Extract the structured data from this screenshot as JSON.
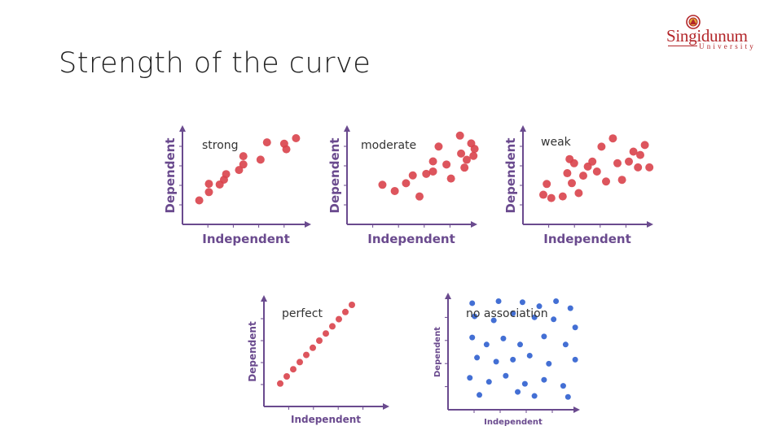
{
  "slide": {
    "title": "Strength of the curve"
  },
  "logo": {
    "name": "Singidunum",
    "subtitle": "University",
    "emblem_icon": "crest-icon",
    "color": "#b3262a"
  },
  "colors": {
    "red_points": "#d9434b",
    "blue_points": "#2f5fcf",
    "axis": "#6a4a8e"
  },
  "plots": [
    {
      "id": "strong",
      "label": "strong",
      "xlabel": "Independent",
      "ylabel": "Dependent",
      "point_color": "red",
      "points": [
        [
          0.05,
          0.1
        ],
        [
          0.14,
          0.22
        ],
        [
          0.14,
          0.34
        ],
        [
          0.24,
          0.33
        ],
        [
          0.28,
          0.4
        ],
        [
          0.3,
          0.48
        ],
        [
          0.42,
          0.54
        ],
        [
          0.46,
          0.62
        ],
        [
          0.46,
          0.74
        ],
        [
          0.62,
          0.69
        ],
        [
          0.68,
          0.94
        ],
        [
          0.84,
          0.92
        ],
        [
          0.86,
          0.84
        ],
        [
          0.95,
          1.0
        ]
      ]
    },
    {
      "id": "moderate",
      "label": "moderate",
      "xlabel": "Independent",
      "ylabel": "Dependent",
      "point_color": "red",
      "points": [
        [
          0.17,
          0.32
        ],
        [
          0.28,
          0.24
        ],
        [
          0.38,
          0.34
        ],
        [
          0.44,
          0.44
        ],
        [
          0.5,
          0.17
        ],
        [
          0.56,
          0.46
        ],
        [
          0.62,
          0.49
        ],
        [
          0.62,
          0.62
        ],
        [
          0.67,
          0.81
        ],
        [
          0.74,
          0.58
        ],
        [
          0.78,
          0.4
        ],
        [
          0.86,
          0.95
        ],
        [
          0.87,
          0.72
        ],
        [
          0.9,
          0.54
        ],
        [
          0.92,
          0.64
        ],
        [
          0.96,
          0.85
        ],
        [
          0.98,
          0.69
        ],
        [
          0.99,
          0.78
        ]
      ]
    },
    {
      "id": "weak",
      "label": "weak",
      "xlabel": "Independent",
      "ylabel": "Dependent",
      "point_color": "red",
      "points": [
        [
          0.05,
          0.22
        ],
        [
          0.08,
          0.35
        ],
        [
          0.12,
          0.18
        ],
        [
          0.22,
          0.2
        ],
        [
          0.26,
          0.48
        ],
        [
          0.28,
          0.65
        ],
        [
          0.3,
          0.36
        ],
        [
          0.32,
          0.6
        ],
        [
          0.36,
          0.24
        ],
        [
          0.4,
          0.45
        ],
        [
          0.44,
          0.56
        ],
        [
          0.48,
          0.62
        ],
        [
          0.52,
          0.5
        ],
        [
          0.56,
          0.8
        ],
        [
          0.6,
          0.38
        ],
        [
          0.66,
          0.9
        ],
        [
          0.7,
          0.6
        ],
        [
          0.74,
          0.4
        ],
        [
          0.8,
          0.62
        ],
        [
          0.84,
          0.74
        ],
        [
          0.88,
          0.55
        ],
        [
          0.9,
          0.7
        ],
        [
          0.94,
          0.82
        ],
        [
          0.98,
          0.55
        ]
      ]
    },
    {
      "id": "perfect",
      "label": "perfect",
      "xlabel": "Independent",
      "ylabel": "Dependent",
      "point_color": "red",
      "points": [
        [
          0.1,
          0.12
        ],
        [
          0.18,
          0.2
        ],
        [
          0.26,
          0.28
        ],
        [
          0.34,
          0.36
        ],
        [
          0.42,
          0.44
        ],
        [
          0.5,
          0.52
        ],
        [
          0.58,
          0.6
        ],
        [
          0.66,
          0.68
        ],
        [
          0.74,
          0.76
        ],
        [
          0.82,
          0.84
        ],
        [
          0.9,
          0.92
        ],
        [
          0.98,
          1.0
        ]
      ]
    },
    {
      "id": "no-association",
      "label": "no association",
      "xlabel": "Independent",
      "ylabel": "Dependent",
      "point_color": "blue",
      "points": [
        [
          0.1,
          0.96
        ],
        [
          0.32,
          0.98
        ],
        [
          0.52,
          0.97
        ],
        [
          0.66,
          0.93
        ],
        [
          0.8,
          0.98
        ],
        [
          0.92,
          0.91
        ],
        [
          0.12,
          0.83
        ],
        [
          0.28,
          0.79
        ],
        [
          0.44,
          0.86
        ],
        [
          0.62,
          0.82
        ],
        [
          0.78,
          0.8
        ],
        [
          0.96,
          0.72
        ],
        [
          0.1,
          0.62
        ],
        [
          0.22,
          0.55
        ],
        [
          0.36,
          0.61
        ],
        [
          0.5,
          0.55
        ],
        [
          0.7,
          0.63
        ],
        [
          0.88,
          0.55
        ],
        [
          0.14,
          0.42
        ],
        [
          0.3,
          0.38
        ],
        [
          0.44,
          0.4
        ],
        [
          0.58,
          0.44
        ],
        [
          0.74,
          0.36
        ],
        [
          0.96,
          0.4
        ],
        [
          0.08,
          0.22
        ],
        [
          0.24,
          0.18
        ],
        [
          0.38,
          0.24
        ],
        [
          0.54,
          0.16
        ],
        [
          0.7,
          0.2
        ],
        [
          0.86,
          0.14
        ],
        [
          0.16,
          0.05
        ],
        [
          0.48,
          0.08
        ],
        [
          0.62,
          0.04
        ],
        [
          0.9,
          0.03
        ]
      ]
    }
  ]
}
